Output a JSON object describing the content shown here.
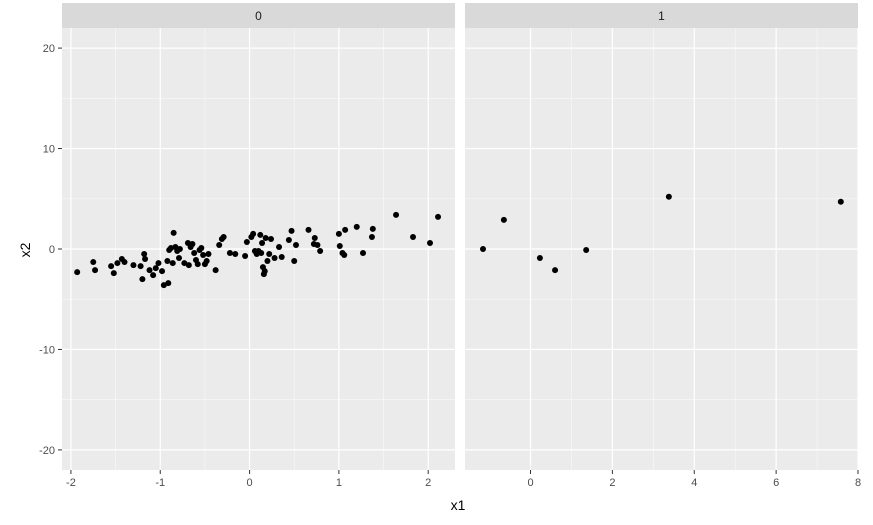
{
  "chart_data": {
    "type": "scatter",
    "xlabel": "x1",
    "ylabel": "x2",
    "grid": true,
    "shared_y_axis": true,
    "ylim": [
      -22,
      22
    ],
    "y_ticks": [
      -20,
      -10,
      0,
      10,
      20
    ],
    "y_tick_labels": [
      "-20",
      "-10",
      "0",
      "10",
      "20"
    ],
    "colors": {
      "panel_background": "#ebebeb",
      "strip_background": "#d9d9d9",
      "grid_major": "#ffffff",
      "points": "#000000",
      "axis_text": "#4d4d4d",
      "title_text": "#000000"
    },
    "panels": [
      {
        "strip_label": "0",
        "xlim": [
          -2.1,
          2.3
        ],
        "x_ticks": [
          -2,
          -1,
          0,
          1,
          2
        ],
        "x_tick_labels": [
          "-2",
          "-1",
          "0",
          "1",
          "2"
        ],
        "points": [
          [
            -1.93,
            -2.3
          ],
          [
            -1.75,
            -1.3
          ],
          [
            -1.73,
            -2.1
          ],
          [
            -1.55,
            -1.7
          ],
          [
            -1.52,
            -2.4
          ],
          [
            -1.48,
            -1.4
          ],
          [
            -1.43,
            -1.0
          ],
          [
            -1.4,
            -1.3
          ],
          [
            -1.3,
            -1.6
          ],
          [
            -1.22,
            -1.7
          ],
          [
            -1.2,
            -3.0
          ],
          [
            -1.18,
            -0.5
          ],
          [
            -1.17,
            -1.0
          ],
          [
            -1.12,
            -2.1
          ],
          [
            -1.08,
            -2.6
          ],
          [
            -1.05,
            -1.9
          ],
          [
            -1.02,
            -1.4
          ],
          [
            -0.98,
            -2.2
          ],
          [
            -0.96,
            -3.6
          ],
          [
            -0.92,
            -1.2
          ],
          [
            -0.91,
            -3.4
          ],
          [
            -0.9,
            -0.1
          ],
          [
            -0.88,
            0.1
          ],
          [
            -0.86,
            -1.4
          ],
          [
            -0.85,
            1.6
          ],
          [
            -0.83,
            0.2
          ],
          [
            -0.81,
            -0.2
          ],
          [
            -0.79,
            -0.9
          ],
          [
            -0.78,
            0.0
          ],
          [
            -0.73,
            -1.4
          ],
          [
            -0.69,
            0.6
          ],
          [
            -0.68,
            -1.6
          ],
          [
            -0.66,
            0.2
          ],
          [
            -0.64,
            0.5
          ],
          [
            -0.62,
            -0.4
          ],
          [
            -0.6,
            -1.1
          ],
          [
            -0.58,
            -1.5
          ],
          [
            -0.56,
            -0.1
          ],
          [
            -0.54,
            0.1
          ],
          [
            -0.52,
            -0.6
          ],
          [
            -0.5,
            -1.5
          ],
          [
            -0.48,
            -1.2
          ],
          [
            -0.46,
            -0.5
          ],
          [
            -0.38,
            -2.1
          ],
          [
            -0.34,
            0.4
          ],
          [
            -0.31,
            1.0
          ],
          [
            -0.29,
            1.2
          ],
          [
            -0.22,
            -0.4
          ],
          [
            -0.16,
            -0.5
          ],
          [
            -0.05,
            -0.7
          ],
          [
            -0.03,
            0.7
          ],
          [
            0.02,
            1.2
          ],
          [
            0.04,
            1.5
          ],
          [
            0.06,
            -0.2
          ],
          [
            0.08,
            -0.5
          ],
          [
            0.1,
            -0.2
          ],
          [
            0.12,
            1.4
          ],
          [
            0.13,
            -0.4
          ],
          [
            0.14,
            0.6
          ],
          [
            0.15,
            -1.8
          ],
          [
            0.16,
            -2.5
          ],
          [
            0.17,
            -2.2
          ],
          [
            0.18,
            1.1
          ],
          [
            0.2,
            -1.2
          ],
          [
            0.22,
            -0.5
          ],
          [
            0.24,
            1.0
          ],
          [
            0.28,
            -0.9
          ],
          [
            0.33,
            0.2
          ],
          [
            0.36,
            -0.8
          ],
          [
            0.44,
            0.9
          ],
          [
            0.47,
            1.8
          ],
          [
            0.5,
            -1.2
          ],
          [
            0.52,
            0.4
          ],
          [
            0.66,
            1.9
          ],
          [
            0.72,
            0.5
          ],
          [
            0.73,
            1.1
          ],
          [
            0.76,
            0.4
          ],
          [
            0.79,
            -0.2
          ],
          [
            1.0,
            1.5
          ],
          [
            1.01,
            0.3
          ],
          [
            1.04,
            -0.4
          ],
          [
            1.06,
            -0.6
          ],
          [
            1.07,
            1.9
          ],
          [
            1.2,
            2.2
          ],
          [
            1.27,
            -0.4
          ],
          [
            1.37,
            1.2
          ],
          [
            1.38,
            2.0
          ],
          [
            1.64,
            3.4
          ],
          [
            1.83,
            1.2
          ],
          [
            2.02,
            0.6
          ],
          [
            2.11,
            3.2
          ]
        ]
      },
      {
        "strip_label": "1",
        "xlim": [
          -1.6,
          8.0
        ],
        "x_ticks": [
          0,
          2,
          4,
          6,
          8
        ],
        "x_tick_labels": [
          "0",
          "2",
          "4",
          "6",
          "8"
        ],
        "points": [
          [
            -1.16,
            0.0
          ],
          [
            -0.65,
            2.9
          ],
          [
            0.23,
            -0.9
          ],
          [
            0.6,
            -2.1
          ],
          [
            1.36,
            -0.1
          ],
          [
            3.38,
            5.2
          ],
          [
            7.58,
            4.7
          ]
        ]
      }
    ]
  }
}
